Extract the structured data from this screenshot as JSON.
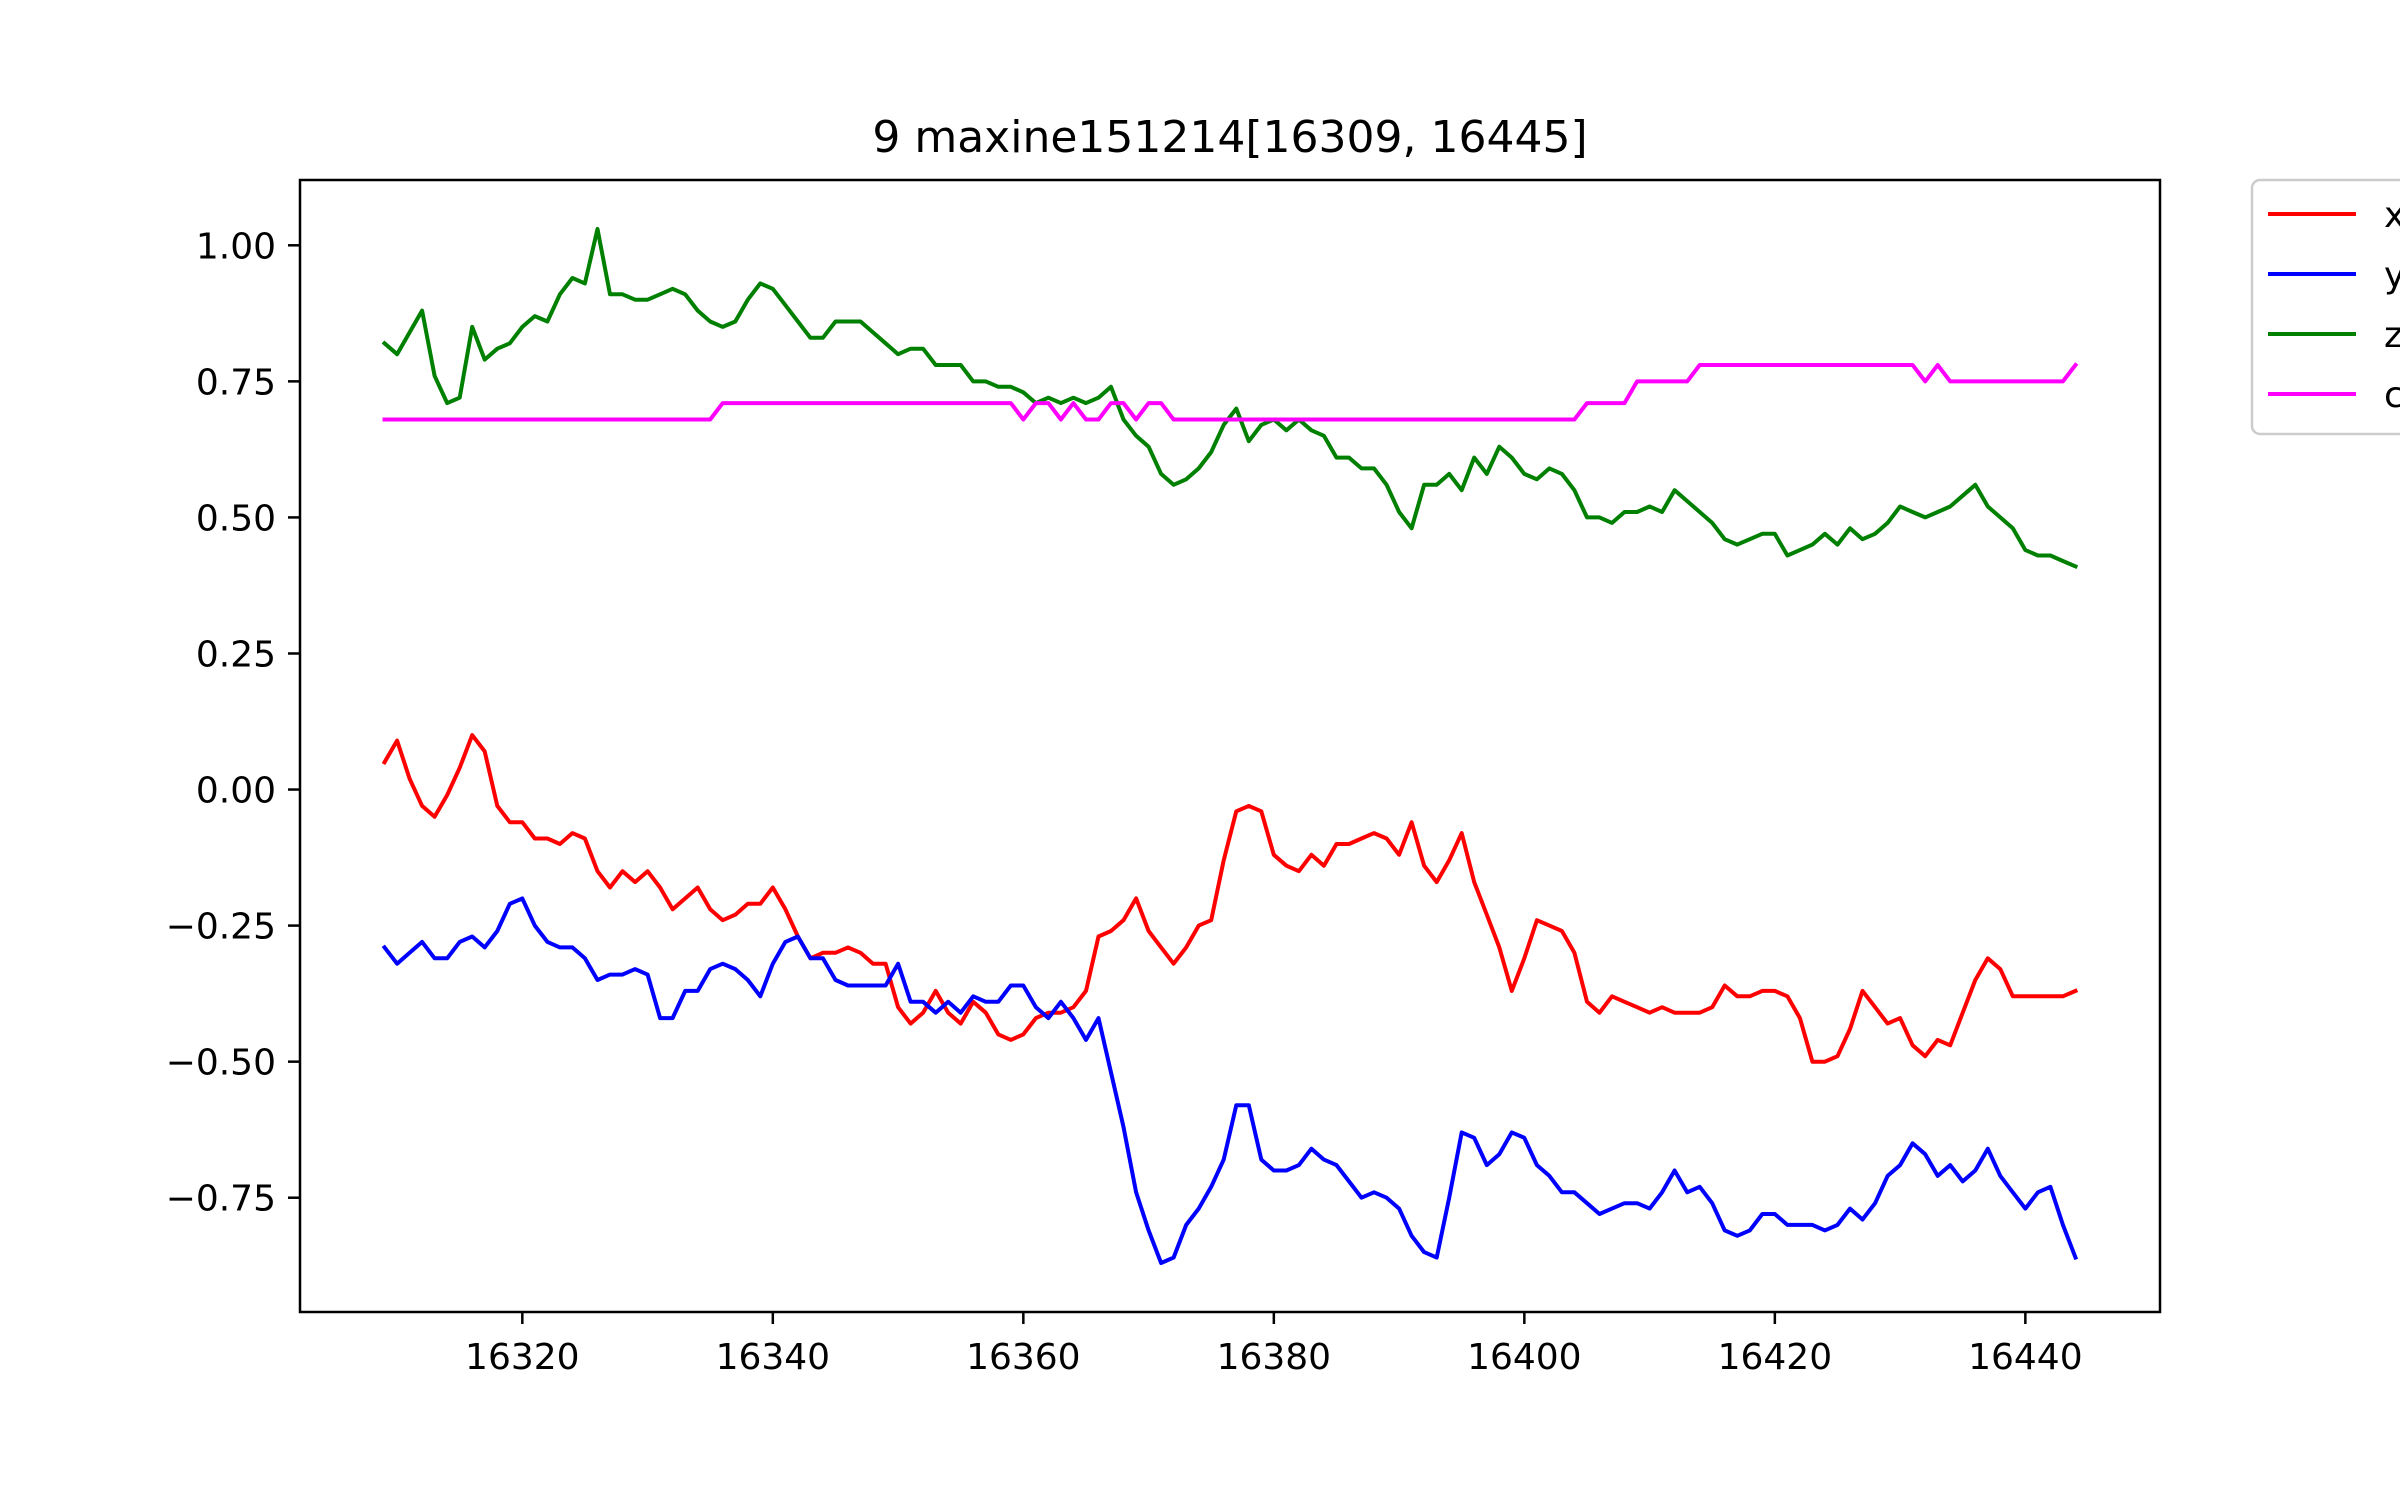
{
  "chart_data": {
    "type": "line",
    "title": "9 maxine151214[16309, 16445]",
    "xlabel": "",
    "ylabel": "",
    "xlim": [
      16302.25,
      16450.75
    ],
    "ylim": [
      -0.96,
      1.12
    ],
    "xticks": [
      16320,
      16340,
      16360,
      16380,
      16400,
      16420,
      16440
    ],
    "xtick_labels": [
      "16320",
      "16340",
      "16360",
      "16380",
      "16400",
      "16420",
      "16440"
    ],
    "yticks": [
      1.0,
      0.75,
      0.5,
      0.25,
      0.0,
      -0.25,
      -0.5,
      -0.75
    ],
    "ytick_labels": [
      "1.00",
      "0.75",
      "0.50",
      "0.25",
      "0.00",
      "−0.25",
      "−0.50",
      "−0.75"
    ],
    "grid": false,
    "legend_position": "outside-top-right",
    "legend_labels": [
      "x",
      "y",
      "z",
      "c"
    ],
    "series": [
      {
        "name": "x",
        "color": "#ff0000",
        "x": [
          16309,
          16310,
          16311,
          16312,
          16313,
          16314,
          16315,
          16316,
          16317,
          16318,
          16319,
          16320,
          16321,
          16322,
          16323,
          16324,
          16325,
          16326,
          16327,
          16328,
          16329,
          16330,
          16331,
          16332,
          16333,
          16334,
          16335,
          16336,
          16337,
          16338,
          16339,
          16340,
          16341,
          16342,
          16343,
          16344,
          16345,
          16346,
          16347,
          16348,
          16349,
          16350,
          16351,
          16352,
          16353,
          16354,
          16355,
          16356,
          16357,
          16358,
          16359,
          16360,
          16361,
          16362,
          16363,
          16364,
          16365,
          16366,
          16367,
          16368,
          16369,
          16370,
          16371,
          16372,
          16373,
          16374,
          16375,
          16376,
          16377,
          16378,
          16379,
          16380,
          16381,
          16382,
          16383,
          16384,
          16385,
          16386,
          16387,
          16388,
          16389,
          16390,
          16391,
          16392,
          16393,
          16394,
          16395,
          16396,
          16397,
          16398,
          16399,
          16400,
          16401,
          16402,
          16403,
          16404,
          16405,
          16406,
          16407,
          16408,
          16409,
          16410,
          16411,
          16412,
          16413,
          16414,
          16415,
          16416,
          16417,
          16418,
          16419,
          16420,
          16421,
          16422,
          16423,
          16424,
          16425,
          16426,
          16427,
          16428,
          16429,
          16430,
          16431,
          16432,
          16433,
          16434,
          16435,
          16436,
          16437,
          16438,
          16439,
          16440,
          16441,
          16442,
          16443,
          16444
        ],
        "y": [
          0.05,
          0.09,
          0.02,
          -0.03,
          -0.05,
          -0.01,
          0.04,
          0.1,
          0.07,
          -0.03,
          -0.06,
          -0.06,
          -0.09,
          -0.09,
          -0.1,
          -0.08,
          -0.09,
          -0.15,
          -0.18,
          -0.15,
          -0.17,
          -0.15,
          -0.18,
          -0.22,
          -0.2,
          -0.18,
          -0.22,
          -0.24,
          -0.23,
          -0.21,
          -0.21,
          -0.18,
          -0.22,
          -0.27,
          -0.31,
          -0.3,
          -0.3,
          -0.29,
          -0.3,
          -0.32,
          -0.32,
          -0.4,
          -0.43,
          -0.41,
          -0.37,
          -0.41,
          -0.43,
          -0.39,
          -0.41,
          -0.45,
          -0.46,
          -0.45,
          -0.42,
          -0.41,
          -0.41,
          -0.4,
          -0.37,
          -0.27,
          -0.26,
          -0.24,
          -0.2,
          -0.26,
          -0.29,
          -0.32,
          -0.29,
          -0.25,
          -0.24,
          -0.13,
          -0.04,
          -0.03,
          -0.04,
          -0.12,
          -0.14,
          -0.15,
          -0.12,
          -0.14,
          -0.1,
          -0.1,
          -0.09,
          -0.08,
          -0.09,
          -0.12,
          -0.06,
          -0.14,
          -0.17,
          -0.13,
          -0.08,
          -0.17,
          -0.23,
          -0.29,
          -0.37,
          -0.31,
          -0.24,
          -0.25,
          -0.26,
          -0.3,
          -0.39,
          -0.41,
          -0.38,
          -0.39,
          -0.4,
          -0.41,
          -0.4,
          -0.41,
          -0.41,
          -0.41,
          -0.4,
          -0.36,
          -0.38,
          -0.38,
          -0.37,
          -0.37,
          -0.38,
          -0.42,
          -0.5,
          -0.5,
          -0.49,
          -0.44,
          -0.37,
          -0.4,
          -0.43,
          -0.42,
          -0.47,
          -0.49,
          -0.46,
          -0.47,
          -0.41,
          -0.35,
          -0.31,
          -0.33,
          -0.38,
          -0.38,
          -0.38,
          -0.38,
          -0.38,
          -0.37
        ]
      },
      {
        "name": "y",
        "color": "#0000ff",
        "x": [
          16309,
          16310,
          16311,
          16312,
          16313,
          16314,
          16315,
          16316,
          16317,
          16318,
          16319,
          16320,
          16321,
          16322,
          16323,
          16324,
          16325,
          16326,
          16327,
          16328,
          16329,
          16330,
          16331,
          16332,
          16333,
          16334,
          16335,
          16336,
          16337,
          16338,
          16339,
          16340,
          16341,
          16342,
          16343,
          16344,
          16345,
          16346,
          16347,
          16348,
          16349,
          16350,
          16351,
          16352,
          16353,
          16354,
          16355,
          16356,
          16357,
          16358,
          16359,
          16360,
          16361,
          16362,
          16363,
          16364,
          16365,
          16366,
          16367,
          16368,
          16369,
          16370,
          16371,
          16372,
          16373,
          16374,
          16375,
          16376,
          16377,
          16378,
          16379,
          16380,
          16381,
          16382,
          16383,
          16384,
          16385,
          16386,
          16387,
          16388,
          16389,
          16390,
          16391,
          16392,
          16393,
          16394,
          16395,
          16396,
          16397,
          16398,
          16399,
          16400,
          16401,
          16402,
          16403,
          16404,
          16405,
          16406,
          16407,
          16408,
          16409,
          16410,
          16411,
          16412,
          16413,
          16414,
          16415,
          16416,
          16417,
          16418,
          16419,
          16420,
          16421,
          16422,
          16423,
          16424,
          16425,
          16426,
          16427,
          16428,
          16429,
          16430,
          16431,
          16432,
          16433,
          16434,
          16435,
          16436,
          16437,
          16438,
          16439,
          16440,
          16441,
          16442,
          16443,
          16444
        ],
        "y": [
          -0.29,
          -0.32,
          -0.3,
          -0.28,
          -0.31,
          -0.31,
          -0.28,
          -0.27,
          -0.29,
          -0.26,
          -0.21,
          -0.2,
          -0.25,
          -0.28,
          -0.29,
          -0.29,
          -0.31,
          -0.35,
          -0.34,
          -0.34,
          -0.33,
          -0.34,
          -0.42,
          -0.42,
          -0.37,
          -0.37,
          -0.33,
          -0.32,
          -0.33,
          -0.35,
          -0.38,
          -0.32,
          -0.28,
          -0.27,
          -0.31,
          -0.31,
          -0.35,
          -0.36,
          -0.36,
          -0.36,
          -0.36,
          -0.32,
          -0.39,
          -0.39,
          -0.41,
          -0.39,
          -0.41,
          -0.38,
          -0.39,
          -0.39,
          -0.36,
          -0.36,
          -0.4,
          -0.42,
          -0.39,
          -0.42,
          -0.46,
          -0.42,
          -0.52,
          -0.62,
          -0.74,
          -0.81,
          -0.87,
          -0.86,
          -0.8,
          -0.77,
          -0.73,
          -0.68,
          -0.58,
          -0.58,
          -0.68,
          -0.7,
          -0.7,
          -0.69,
          -0.66,
          -0.68,
          -0.69,
          -0.72,
          -0.75,
          -0.74,
          -0.75,
          -0.77,
          -0.82,
          -0.85,
          -0.86,
          -0.75,
          -0.63,
          -0.64,
          -0.69,
          -0.67,
          -0.63,
          -0.64,
          -0.69,
          -0.71,
          -0.74,
          -0.74,
          -0.76,
          -0.78,
          -0.77,
          -0.76,
          -0.76,
          -0.77,
          -0.74,
          -0.7,
          -0.74,
          -0.73,
          -0.76,
          -0.81,
          -0.82,
          -0.81,
          -0.78,
          -0.78,
          -0.8,
          -0.8,
          -0.8,
          -0.81,
          -0.8,
          -0.77,
          -0.79,
          -0.76,
          -0.71,
          -0.69,
          -0.65,
          -0.67,
          -0.71,
          -0.69,
          -0.72,
          -0.7,
          -0.66,
          -0.71,
          -0.74,
          -0.77,
          -0.74,
          -0.73,
          -0.8,
          -0.86
        ]
      },
      {
        "name": "z",
        "color": "#008000",
        "x": [
          16309,
          16310,
          16311,
          16312,
          16313,
          16314,
          16315,
          16316,
          16317,
          16318,
          16319,
          16320,
          16321,
          16322,
          16323,
          16324,
          16325,
          16326,
          16327,
          16328,
          16329,
          16330,
          16331,
          16332,
          16333,
          16334,
          16335,
          16336,
          16337,
          16338,
          16339,
          16340,
          16341,
          16342,
          16343,
          16344,
          16345,
          16346,
          16347,
          16348,
          16349,
          16350,
          16351,
          16352,
          16353,
          16354,
          16355,
          16356,
          16357,
          16358,
          16359,
          16360,
          16361,
          16362,
          16363,
          16364,
          16365,
          16366,
          16367,
          16368,
          16369,
          16370,
          16371,
          16372,
          16373,
          16374,
          16375,
          16376,
          16377,
          16378,
          16379,
          16380,
          16381,
          16382,
          16383,
          16384,
          16385,
          16386,
          16387,
          16388,
          16389,
          16390,
          16391,
          16392,
          16393,
          16394,
          16395,
          16396,
          16397,
          16398,
          16399,
          16400,
          16401,
          16402,
          16403,
          16404,
          16405,
          16406,
          16407,
          16408,
          16409,
          16410,
          16411,
          16412,
          16413,
          16414,
          16415,
          16416,
          16417,
          16418,
          16419,
          16420,
          16421,
          16422,
          16423,
          16424,
          16425,
          16426,
          16427,
          16428,
          16429,
          16430,
          16431,
          16432,
          16433,
          16434,
          16435,
          16436,
          16437,
          16438,
          16439,
          16440,
          16441,
          16442,
          16443,
          16444
        ],
        "y": [
          0.82,
          0.8,
          0.84,
          0.88,
          0.76,
          0.71,
          0.72,
          0.85,
          0.79,
          0.81,
          0.82,
          0.85,
          0.87,
          0.86,
          0.91,
          0.94,
          0.93,
          1.03,
          0.91,
          0.91,
          0.9,
          0.9,
          0.91,
          0.92,
          0.91,
          0.88,
          0.86,
          0.85,
          0.86,
          0.9,
          0.93,
          0.92,
          0.89,
          0.86,
          0.83,
          0.83,
          0.86,
          0.86,
          0.86,
          0.84,
          0.82,
          0.8,
          0.81,
          0.81,
          0.78,
          0.78,
          0.78,
          0.75,
          0.75,
          0.74,
          0.74,
          0.73,
          0.71,
          0.72,
          0.71,
          0.72,
          0.71,
          0.72,
          0.74,
          0.68,
          0.65,
          0.63,
          0.58,
          0.56,
          0.57,
          0.59,
          0.62,
          0.67,
          0.7,
          0.64,
          0.67,
          0.68,
          0.66,
          0.68,
          0.66,
          0.65,
          0.61,
          0.61,
          0.59,
          0.59,
          0.56,
          0.51,
          0.48,
          0.56,
          0.56,
          0.58,
          0.55,
          0.61,
          0.58,
          0.63,
          0.61,
          0.58,
          0.57,
          0.59,
          0.58,
          0.55,
          0.5,
          0.5,
          0.49,
          0.51,
          0.51,
          0.52,
          0.51,
          0.55,
          0.53,
          0.51,
          0.49,
          0.46,
          0.45,
          0.46,
          0.47,
          0.47,
          0.43,
          0.44,
          0.45,
          0.47,
          0.45,
          0.48,
          0.46,
          0.47,
          0.49,
          0.52,
          0.51,
          0.5,
          0.51,
          0.52,
          0.54,
          0.56,
          0.52,
          0.5,
          0.48,
          0.44,
          0.43,
          0.43,
          0.42,
          0.41
        ]
      },
      {
        "name": "c",
        "color": "#ff00ff",
        "x": [
          16309,
          16310,
          16311,
          16312,
          16313,
          16314,
          16315,
          16316,
          16317,
          16318,
          16319,
          16320,
          16321,
          16322,
          16323,
          16324,
          16325,
          16326,
          16327,
          16328,
          16329,
          16330,
          16331,
          16332,
          16333,
          16334,
          16335,
          16336,
          16337,
          16338,
          16339,
          16340,
          16341,
          16342,
          16343,
          16344,
          16345,
          16346,
          16347,
          16348,
          16349,
          16350,
          16351,
          16352,
          16353,
          16354,
          16355,
          16356,
          16357,
          16358,
          16359,
          16360,
          16361,
          16362,
          16363,
          16364,
          16365,
          16366,
          16367,
          16368,
          16369,
          16370,
          16371,
          16372,
          16373,
          16374,
          16375,
          16376,
          16377,
          16378,
          16379,
          16380,
          16381,
          16382,
          16383,
          16384,
          16385,
          16386,
          16387,
          16388,
          16389,
          16390,
          16391,
          16392,
          16393,
          16394,
          16395,
          16396,
          16397,
          16398,
          16399,
          16400,
          16401,
          16402,
          16403,
          16404,
          16405,
          16406,
          16407,
          16408,
          16409,
          16410,
          16411,
          16412,
          16413,
          16414,
          16415,
          16416,
          16417,
          16418,
          16419,
          16420,
          16421,
          16422,
          16423,
          16424,
          16425,
          16426,
          16427,
          16428,
          16429,
          16430,
          16431,
          16432,
          16433,
          16434,
          16435,
          16436,
          16437,
          16438,
          16439,
          16440,
          16441,
          16442,
          16443,
          16444
        ],
        "y": [
          0.68,
          0.68,
          0.68,
          0.68,
          0.68,
          0.68,
          0.68,
          0.68,
          0.68,
          0.68,
          0.68,
          0.68,
          0.68,
          0.68,
          0.68,
          0.68,
          0.68,
          0.68,
          0.68,
          0.68,
          0.68,
          0.68,
          0.68,
          0.68,
          0.68,
          0.68,
          0.68,
          0.71,
          0.71,
          0.71,
          0.71,
          0.71,
          0.71,
          0.71,
          0.71,
          0.71,
          0.71,
          0.71,
          0.71,
          0.71,
          0.71,
          0.71,
          0.71,
          0.71,
          0.71,
          0.71,
          0.71,
          0.71,
          0.71,
          0.71,
          0.71,
          0.68,
          0.71,
          0.71,
          0.68,
          0.71,
          0.68,
          0.68,
          0.71,
          0.71,
          0.68,
          0.71,
          0.71,
          0.68,
          0.68,
          0.68,
          0.68,
          0.68,
          0.68,
          0.68,
          0.68,
          0.68,
          0.68,
          0.68,
          0.68,
          0.68,
          0.68,
          0.68,
          0.68,
          0.68,
          0.68,
          0.68,
          0.68,
          0.68,
          0.68,
          0.68,
          0.68,
          0.68,
          0.68,
          0.68,
          0.68,
          0.68,
          0.68,
          0.68,
          0.68,
          0.68,
          0.71,
          0.71,
          0.71,
          0.71,
          0.75,
          0.75,
          0.75,
          0.75,
          0.75,
          0.78,
          0.78,
          0.78,
          0.78,
          0.78,
          0.78,
          0.78,
          0.78,
          0.78,
          0.78,
          0.78,
          0.78,
          0.78,
          0.78,
          0.78,
          0.78,
          0.78,
          0.78,
          0.75,
          0.78,
          0.75,
          0.75,
          0.75,
          0.75,
          0.75,
          0.75,
          0.75,
          0.75,
          0.75,
          0.75,
          0.78
        ]
      }
    ]
  }
}
